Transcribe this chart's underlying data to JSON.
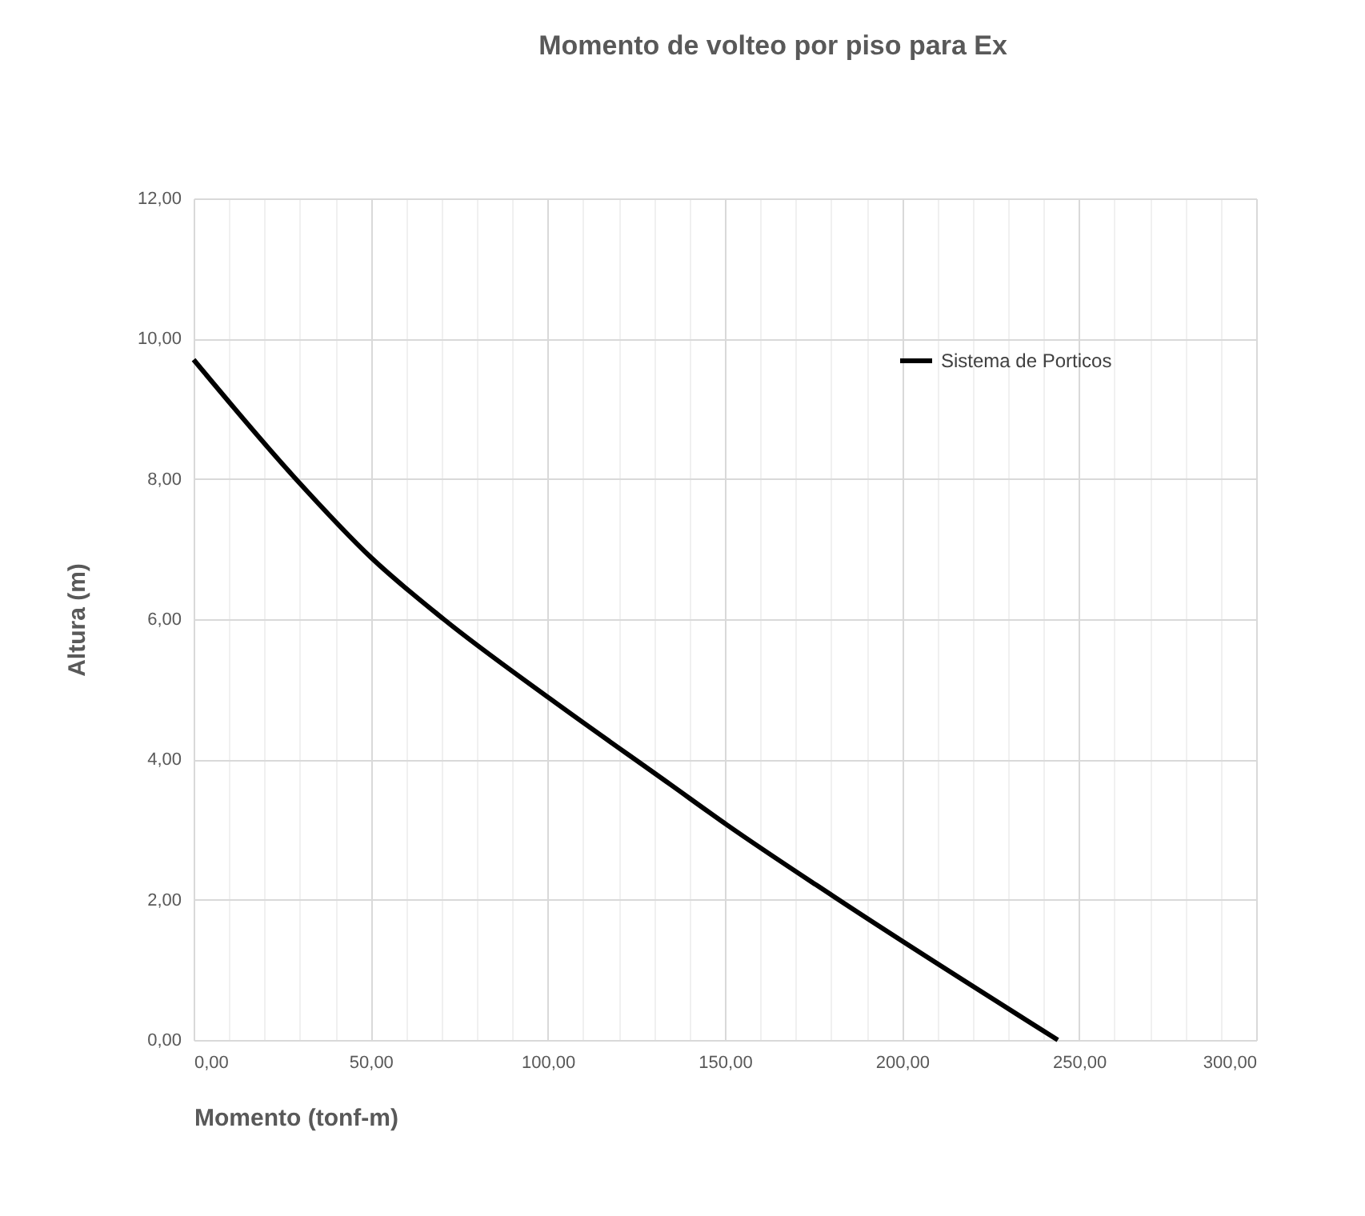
{
  "chart_data": {
    "type": "line",
    "title": "Momento de volteo por piso para Ex",
    "xlabel": "Momento (tonf-m)",
    "ylabel": "Altura (m)",
    "x": [
      0,
      28.5,
      50.3,
      70.6,
      100.8,
      134.7,
      150.5,
      180.6,
      244
    ],
    "series": [
      {
        "name": "Sistema de Porticos",
        "color": "#000000",
        "values": [
          9.7,
          8.02,
          6.87,
          6.0,
          4.86,
          3.64,
          3.07,
          2.05,
          0
        ]
      }
    ],
    "xlim": [
      0,
      300
    ],
    "xticks": [
      {
        "value": 0,
        "label": "0,00"
      },
      {
        "value": 10,
        "label": null
      },
      {
        "value": 20,
        "label": null
      },
      {
        "value": 30,
        "label": null
      },
      {
        "value": 40,
        "label": null
      },
      {
        "value": 50,
        "label": "50,00"
      },
      {
        "value": 60,
        "label": null
      },
      {
        "value": 70,
        "label": null
      },
      {
        "value": 80,
        "label": null
      },
      {
        "value": 90,
        "label": null
      },
      {
        "value": 100,
        "label": "100,00"
      },
      {
        "value": 110,
        "label": null
      },
      {
        "value": 120,
        "label": null
      },
      {
        "value": 130,
        "label": null
      },
      {
        "value": 140,
        "label": null
      },
      {
        "value": 150,
        "label": "150,00"
      },
      {
        "value": 160,
        "label": null
      },
      {
        "value": 170,
        "label": null
      },
      {
        "value": 180,
        "label": null
      },
      {
        "value": 190,
        "label": null
      },
      {
        "value": 200,
        "label": "200,00"
      },
      {
        "value": 210,
        "label": null
      },
      {
        "value": 220,
        "label": null
      },
      {
        "value": 230,
        "label": null
      },
      {
        "value": 240,
        "label": null
      },
      {
        "value": 250,
        "label": "250,00"
      },
      {
        "value": 260,
        "label": null
      },
      {
        "value": 270,
        "label": null
      },
      {
        "value": 280,
        "label": null
      },
      {
        "value": 290,
        "label": null
      },
      {
        "value": 300,
        "label": "300,00"
      }
    ],
    "ylim": [
      0,
      12
    ],
    "yticks": [
      {
        "value": 0,
        "label": "0,00"
      },
      {
        "value": 2,
        "label": "2,00"
      },
      {
        "value": 4,
        "label": "4,00"
      },
      {
        "value": 6,
        "label": "6,00"
      },
      {
        "value": 8,
        "label": "8,00"
      },
      {
        "value": 10,
        "label": "10,00"
      },
      {
        "value": 12,
        "label": "12,00"
      }
    ],
    "grid": true,
    "legend": "top right",
    "line_style": "solid"
  }
}
